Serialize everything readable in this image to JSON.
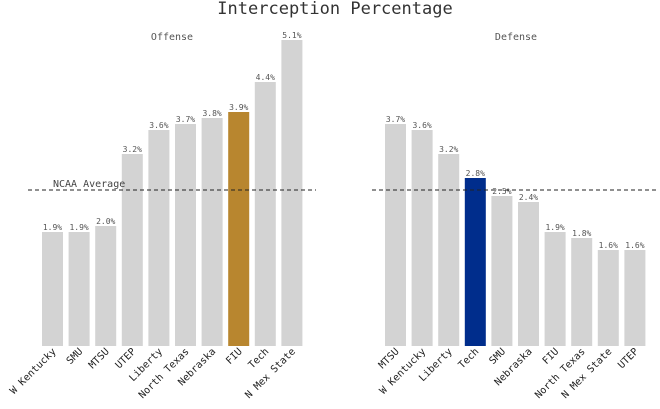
{
  "title": "Interception Percentage",
  "chart_data": [
    {
      "type": "bar",
      "title": "Offense",
      "categories": [
        "W Kentucky",
        "SMU",
        "MTSU",
        "UTEP",
        "Liberty",
        "North Texas",
        "Nebraska",
        "FIU",
        "Tech",
        "N Mex State"
      ],
      "values": [
        1.9,
        1.9,
        2.0,
        3.2,
        3.6,
        3.7,
        3.8,
        3.9,
        4.4,
        5.1
      ],
      "value_labels": [
        "1.9%",
        "1.9%",
        "2.0%",
        "3.2%",
        "3.6%",
        "3.7%",
        "3.8%",
        "3.9%",
        "4.4%",
        "5.1%"
      ],
      "highlight": "FIU",
      "highlight_color": "#b8862f",
      "bar_color": "#d3d3d3",
      "reference_line": {
        "label": "NCAA Average",
        "value": 2.6
      },
      "ylim": [
        0,
        5.3
      ],
      "grid": false
    },
    {
      "type": "bar",
      "title": "Defense",
      "categories": [
        "MTSU",
        "W Kentucky",
        "Liberty",
        "Tech",
        "SMU",
        "Nebraska",
        "FIU",
        "North Texas",
        "N Mex State",
        "UTEP"
      ],
      "values": [
        3.7,
        3.6,
        3.2,
        2.8,
        2.5,
        2.4,
        1.9,
        1.8,
        1.6,
        1.6
      ],
      "value_labels": [
        "3.7%",
        "3.6%",
        "3.2%",
        "2.8%",
        "2.5%",
        "2.4%",
        "1.9%",
        "1.8%",
        "1.6%",
        "1.6%"
      ],
      "highlight": "Tech",
      "highlight_color": "#002d8c",
      "bar_color": "#d3d3d3",
      "reference_line": {
        "label": "",
        "value": 2.6
      },
      "ylim": [
        0,
        5.3
      ],
      "grid": false
    }
  ]
}
